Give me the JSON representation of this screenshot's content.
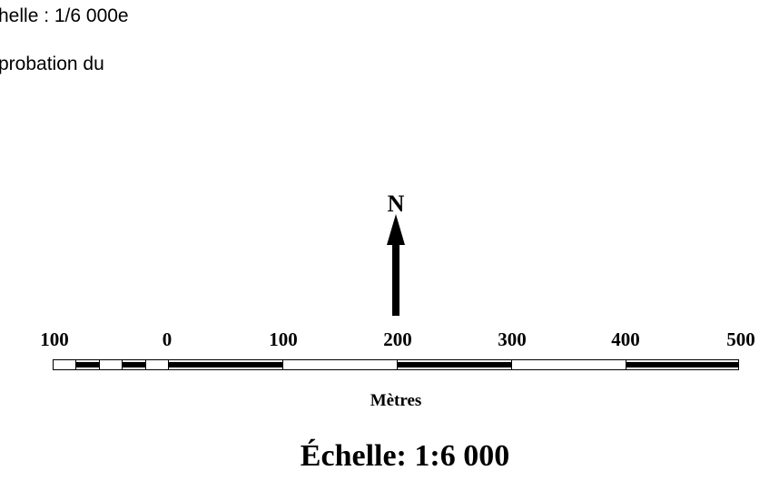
{
  "text_lines": {
    "line1": "helle : 1/6 000e",
    "line2": "probation du"
  },
  "north": {
    "label": "N",
    "icon": "north-arrow-icon"
  },
  "scale_bar": {
    "tick_labels": [
      "100",
      "0",
      "100",
      "200",
      "300",
      "400",
      "500"
    ],
    "units": "Mètres",
    "title": "Échelle: 1:6 000",
    "colors": {
      "dark": "#000000",
      "light": "#ffffff"
    }
  }
}
